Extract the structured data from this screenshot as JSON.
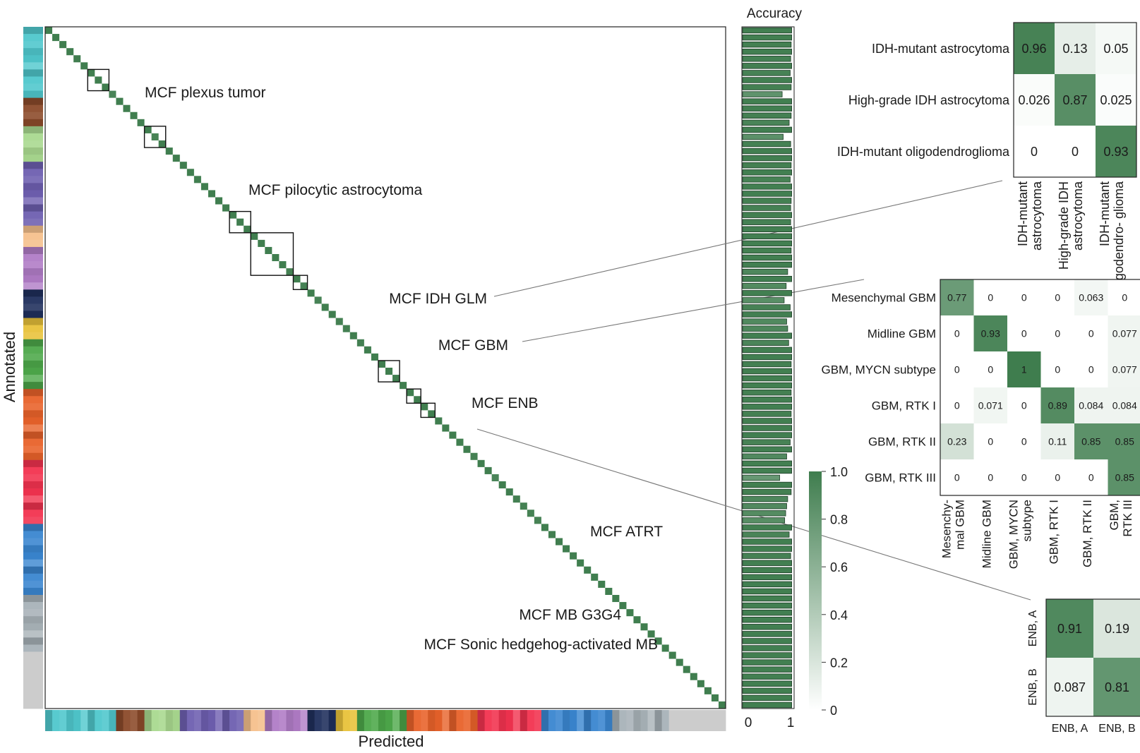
{
  "main": {
    "xlabel": "Predicted",
    "ylabel": "Annotated",
    "accuracy_title": "Accuracy",
    "accuracy_ticks": [
      "0",
      "1"
    ],
    "classes": 96,
    "boxes": [
      {
        "label": "MCF plexus tumor",
        "start": 6,
        "size": 3
      },
      {
        "label": "MCF pilocytic astrocytoma",
        "start": 14,
        "size": 3
      },
      {
        "label": "MCF IDH GLM",
        "start": 26,
        "size": 3
      },
      {
        "label": "MCF GBM",
        "start": 29,
        "size": 6
      },
      {
        "label": "MCF ENB",
        "start": 35,
        "size": 2
      },
      {
        "label": "MCF ATRT",
        "start": 47,
        "size": 3
      },
      {
        "label": "MCF MB G3G4",
        "start": 51,
        "size": 2
      },
      {
        "label": "MCF Sonic hedgehog-activated MB",
        "start": 53,
        "size": 2
      }
    ],
    "family_colors": [
      "#4fc7cc",
      "#8b4a2a",
      "#a9d98f",
      "#6e5fb0",
      "#f5c08c",
      "#b07cc6",
      "#1f2f5c",
      "#e8c23a",
      "#4da84a",
      "#e8622a",
      "#f2334f",
      "#3a86d0",
      "#a8b2b8"
    ],
    "family_sizes": [
      10,
      4,
      5,
      9,
      3,
      6,
      4,
      3,
      7,
      10,
      9,
      10,
      8
    ]
  },
  "colorbar": {
    "ticks": [
      "1.0",
      "0.8",
      "0.6",
      "0.4",
      "0.2",
      "0"
    ],
    "min": 0,
    "max": 1
  },
  "chart_data": [
    {
      "type": "heatmap",
      "title": "",
      "rows": [
        "IDH-mutant astrocytoma",
        "High-grade IDH astrocytoma",
        "IDH-mutant oligodendroglioma"
      ],
      "cols": [
        "IDH-mutant astrocytoma",
        "High-grade IDH astrocytoma",
        "IDH-mutant oligodendro- glioma"
      ],
      "values": [
        [
          0.96,
          0.13,
          0.05
        ],
        [
          0.026,
          0.87,
          0.025
        ],
        [
          0,
          0,
          0.93
        ]
      ],
      "value_labels": [
        [
          "0.96",
          "0.13",
          "0.05"
        ],
        [
          "0.026",
          "0.87",
          "0.025"
        ],
        [
          "0",
          "0",
          "0.93"
        ]
      ]
    },
    {
      "type": "heatmap",
      "title": "",
      "rows": [
        "Mesenchymal GBM",
        "Midline GBM",
        "GBM, MYCN subtype",
        "GBM, RTK I",
        "GBM, RTK II",
        "GBM, RTK III"
      ],
      "cols": [
        "Mesenchy- mal GBM",
        "Midline GBM",
        "GBM, MYCN subtype",
        "GBM, RTK I",
        "GBM, RTK II",
        "GBM, RTK III"
      ],
      "values": [
        [
          0.77,
          0,
          0,
          0,
          0.063,
          0
        ],
        [
          0,
          0.93,
          0,
          0,
          0,
          0.077
        ],
        [
          0,
          0,
          1,
          0,
          0,
          0.077
        ],
        [
          0,
          0.071,
          0,
          0.89,
          0.084,
          0.084
        ],
        [
          0.23,
          0,
          0,
          0.11,
          0.85,
          0.85
        ],
        [
          0,
          0,
          0,
          0,
          0,
          0.85
        ]
      ],
      "value_labels": [
        [
          "0.77",
          "0",
          "0",
          "0",
          "0.063",
          "0"
        ],
        [
          "0",
          "0.93",
          "0",
          "0",
          "0",
          "0.077"
        ],
        [
          "0",
          "0",
          "1",
          "0",
          "0",
          "0.077"
        ],
        [
          "0",
          "0.071",
          "0",
          "0.89",
          "0.084",
          "0.084"
        ],
        [
          "0.23",
          "0",
          "0",
          "0.11",
          "0.85",
          "0.85"
        ],
        [
          "0",
          "0",
          "0",
          "0",
          "0",
          "0.85"
        ]
      ]
    },
    {
      "type": "heatmap",
      "title": "",
      "rows": [
        "ENB, A",
        "ENB, B"
      ],
      "cols": [
        "ENB, A",
        "ENB, B"
      ],
      "values": [
        [
          0.91,
          0.19
        ],
        [
          0.087,
          0.81
        ]
      ],
      "value_labels": [
        [
          "0.91",
          "0.19"
        ],
        [
          "0.087",
          "0.81"
        ]
      ]
    },
    {
      "type": "bar",
      "title": "Accuracy",
      "xlim": [
        0,
        1
      ],
      "values": [
        0.98,
        0.98,
        0.97,
        0.98,
        0.96,
        0.98,
        0.95,
        0.98,
        0.97,
        0.79,
        0.98,
        0.98,
        0.97,
        0.93,
        0.98,
        0.81,
        0.96,
        0.98,
        0.98,
        0.97,
        0.98,
        0.95,
        0.98,
        0.98,
        0.97,
        0.96,
        0.98,
        0.96,
        0.98,
        0.98,
        0.98,
        0.97,
        0.98,
        0.98,
        0.9,
        0.98,
        0.87,
        0.98,
        0.83,
        0.95,
        0.98,
        0.88,
        0.9,
        0.98,
        0.92,
        0.98,
        0.98,
        0.97,
        0.98,
        0.98,
        0.98,
        0.97,
        0.98,
        0.98,
        0.97,
        0.98,
        0.98,
        0.98,
        0.95,
        0.98,
        0.88,
        0.98,
        0.98,
        0.74,
        0.98,
        0.97,
        0.9,
        0.88,
        0.86,
        0.84,
        0.98,
        0.93,
        0.98,
        0.98,
        0.96,
        0.98,
        0.98,
        0.98,
        0.98,
        0.98,
        0.98,
        0.98,
        0.98,
        0.98,
        0.98,
        0.98,
        0.98,
        0.98,
        0.98,
        0.98,
        0.98,
        0.98,
        0.98,
        0.98,
        0.98,
        0.98
      ]
    }
  ]
}
